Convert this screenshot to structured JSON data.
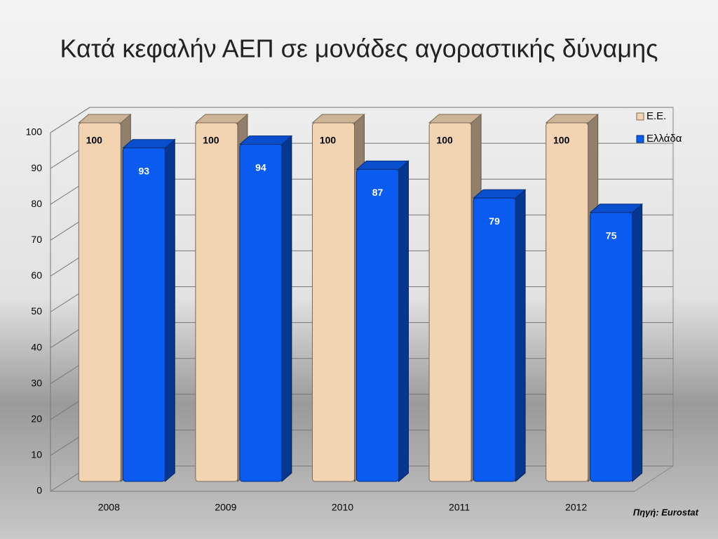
{
  "chart_data": {
    "type": "bar",
    "title": "Κατά κεφαλήν ΑΕΠ σε μονάδες αγοραστικής δύναμης",
    "categories": [
      "2008",
      "2009",
      "2010",
      "2011",
      "2012"
    ],
    "series": [
      {
        "name": "Ε.Ε.",
        "color": "#f2d4b2",
        "values": [
          100,
          100,
          100,
          100,
          100
        ]
      },
      {
        "name": "Ελλάδα",
        "color": "#0a5cf0",
        "values": [
          93,
          94,
          87,
          79,
          75
        ]
      }
    ],
    "ylim": [
      0,
      100
    ],
    "yticks": [
      0,
      10,
      20,
      30,
      40,
      50,
      60,
      70,
      80,
      90,
      100
    ],
    "grid": true,
    "legend": "top-right",
    "source": "Πηγή: Eurostat"
  }
}
